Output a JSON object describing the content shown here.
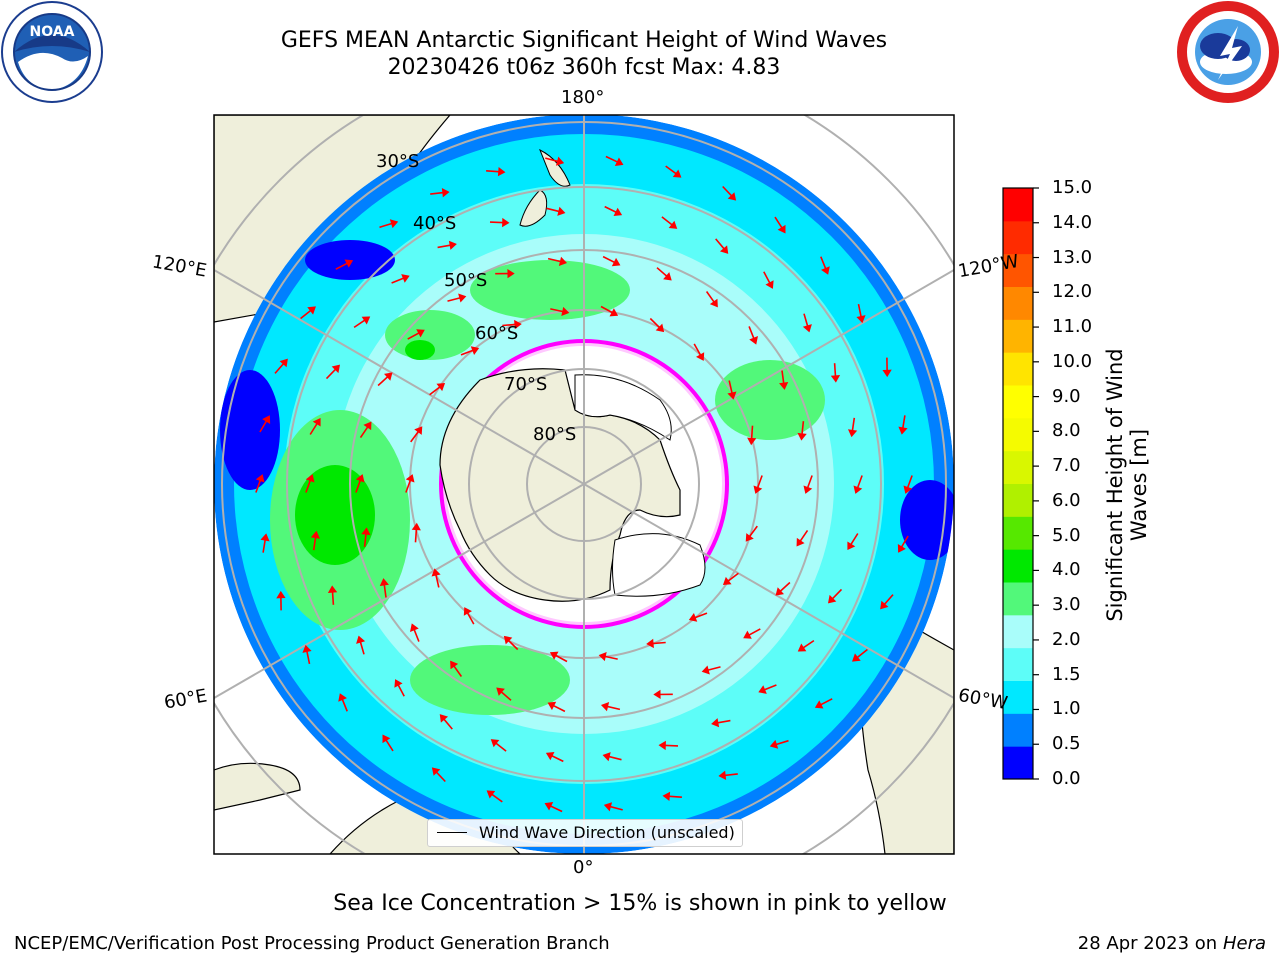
{
  "header": {
    "title_line1": "GEFS MEAN Antarctic Significant Height of Wind Waves",
    "title_line2": "20230426 t06z 360h fcst   Max: 4.83"
  },
  "logos": {
    "left": "noaa-logo",
    "right": "nws-logo"
  },
  "map": {
    "projection": "south-polar-stereographic",
    "longitude_labels": [
      "180°",
      "120°E",
      "120°W",
      "60°E",
      "60°W",
      "0°"
    ],
    "latitude_labels": [
      "30°S",
      "40°S",
      "50°S",
      "60°S",
      "70°S",
      "80°S"
    ],
    "legend_label": "Wind Wave Direction (unscaled)",
    "colors": {
      "land": "#efefdb",
      "ice": "#ffffff",
      "arrows": "#ff0000",
      "grid": "#b0b0b0"
    }
  },
  "colorbar": {
    "label": "Significant Height of Wind Waves [m]",
    "ticks": [
      "15.0",
      "14.0",
      "13.0",
      "12.0",
      "11.0",
      "10.0",
      "9.0",
      "8.0",
      "7.0",
      "6.0",
      "5.0",
      "4.0",
      "3.0",
      "2.0",
      "1.5",
      "1.0",
      "0.5",
      "0.0"
    ],
    "bins": [
      {
        "color": "#0000ff"
      },
      {
        "color": "#0080ff"
      },
      {
        "color": "#00e8ff"
      },
      {
        "color": "#5dfdf8"
      },
      {
        "color": "#a9fdfa"
      },
      {
        "color": "#52f87a"
      },
      {
        "color": "#00e800"
      },
      {
        "color": "#56e800"
      },
      {
        "color": "#b0f000"
      },
      {
        "color": "#d9f700"
      },
      {
        "color": "#f5fb00"
      },
      {
        "color": "#ffff00"
      },
      {
        "color": "#ffe400"
      },
      {
        "color": "#ffb400"
      },
      {
        "color": "#ff8800"
      },
      {
        "color": "#ff5500"
      },
      {
        "color": "#ff2b00"
      },
      {
        "color": "#ff0000"
      }
    ]
  },
  "footer": {
    "note": "Sea Ice Concentration > 15% is shown in pink to yellow",
    "left": "NCEP/EMC/Verification Post Processing Product Generation Branch",
    "right_prefix": "28 Apr 2023 on ",
    "right_machine": "Hera"
  }
}
